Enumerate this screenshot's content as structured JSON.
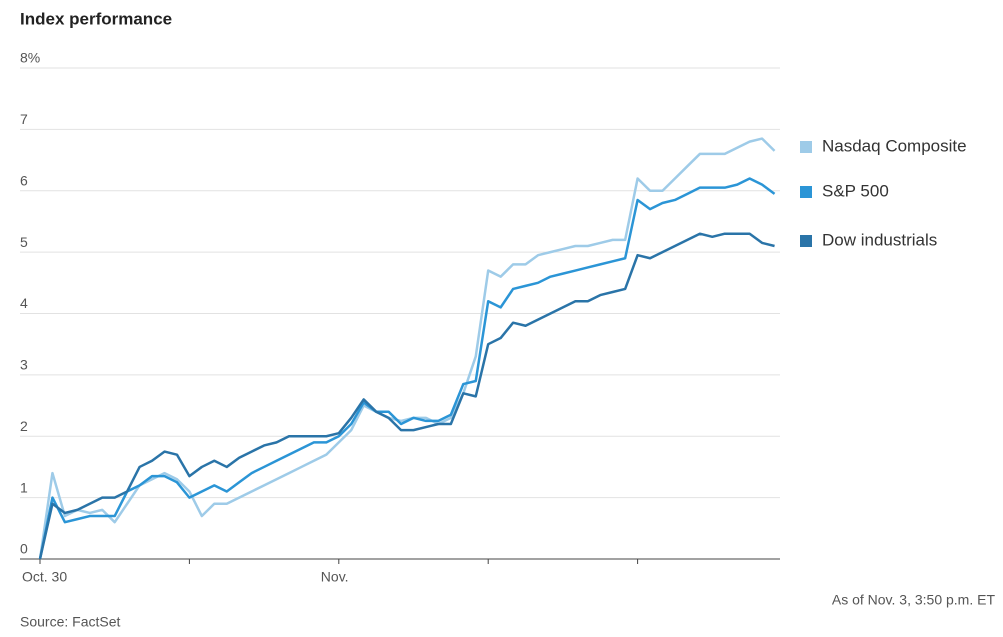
{
  "chart_data": {
    "type": "line",
    "title": "Index performance",
    "source": "Source: FactSet",
    "note": "As of Nov. 3, 3:50 p.m. ET",
    "categories": [
      "Oct. 30",
      null,
      null,
      null,
      null,
      null,
      null,
      null,
      null,
      null,
      null,
      null,
      null,
      null,
      null,
      null,
      null,
      null,
      null,
      null,
      null,
      null,
      null,
      null,
      "Nov.",
      null,
      null,
      null,
      null,
      null,
      null,
      null,
      null,
      null,
      null,
      null,
      null,
      null,
      null,
      null,
      null,
      null,
      null,
      null,
      null,
      null,
      null,
      null,
      null,
      null,
      null,
      null,
      null,
      null,
      null,
      null,
      null,
      null,
      null,
      null
    ],
    "xticks": [
      0,
      12,
      24,
      36,
      48
    ],
    "ylim": [
      0,
      8
    ],
    "yticks": [
      0,
      1,
      2,
      3,
      4,
      5,
      6,
      7,
      {
        "value": 8,
        "label": "8%"
      }
    ],
    "grid": true,
    "legend": "right",
    "series": [
      {
        "name": "Nasdaq Composite",
        "color": "#9ecbe8",
        "values": [
          0,
          1.4,
          0.7,
          0.8,
          0.75,
          0.8,
          0.6,
          0.9,
          1.2,
          1.3,
          1.4,
          1.3,
          1.1,
          0.7,
          0.9,
          0.9,
          1.0,
          1.1,
          1.2,
          1.3,
          1.4,
          1.5,
          1.6,
          1.7,
          1.9,
          2.1,
          2.5,
          2.4,
          2.3,
          2.25,
          2.3,
          2.3,
          2.2,
          2.3,
          2.7,
          3.3,
          4.7,
          4.6,
          4.8,
          4.8,
          4.95,
          5.0,
          5.05,
          5.1,
          5.1,
          5.15,
          5.2,
          5.2,
          6.2,
          6.0,
          6.0,
          6.2,
          6.4,
          6.6,
          6.6,
          6.6,
          6.7,
          6.8,
          6.85,
          6.65
        ]
      },
      {
        "name": "S&P 500",
        "color": "#2b95d6",
        "values": [
          0,
          1.0,
          0.6,
          0.65,
          0.7,
          0.7,
          0.7,
          1.1,
          1.2,
          1.35,
          1.35,
          1.25,
          1.0,
          1.1,
          1.2,
          1.1,
          1.25,
          1.4,
          1.5,
          1.6,
          1.7,
          1.8,
          1.9,
          1.9,
          2.0,
          2.2,
          2.55,
          2.4,
          2.4,
          2.2,
          2.3,
          2.25,
          2.25,
          2.35,
          2.85,
          2.9,
          4.2,
          4.1,
          4.4,
          4.45,
          4.5,
          4.6,
          4.65,
          4.7,
          4.75,
          4.8,
          4.85,
          4.9,
          5.85,
          5.7,
          5.8,
          5.85,
          5.95,
          6.05,
          6.05,
          6.05,
          6.1,
          6.2,
          6.1,
          5.95
        ]
      },
      {
        "name": "Dow industrials",
        "color": "#2a74a8",
        "values": [
          0,
          0.9,
          0.75,
          0.8,
          0.9,
          1.0,
          1.0,
          1.1,
          1.5,
          1.6,
          1.75,
          1.7,
          1.35,
          1.5,
          1.6,
          1.5,
          1.65,
          1.75,
          1.85,
          1.9,
          2.0,
          2.0,
          2.0,
          2.0,
          2.05,
          2.3,
          2.6,
          2.4,
          2.3,
          2.1,
          2.1,
          2.15,
          2.2,
          2.2,
          2.7,
          2.65,
          3.5,
          3.6,
          3.85,
          3.8,
          3.9,
          4.0,
          4.1,
          4.2,
          4.2,
          4.3,
          4.35,
          4.4,
          4.95,
          4.9,
          5.0,
          5.1,
          5.2,
          5.3,
          5.25,
          5.3,
          5.3,
          5.3,
          5.15,
          5.1
        ]
      }
    ]
  }
}
